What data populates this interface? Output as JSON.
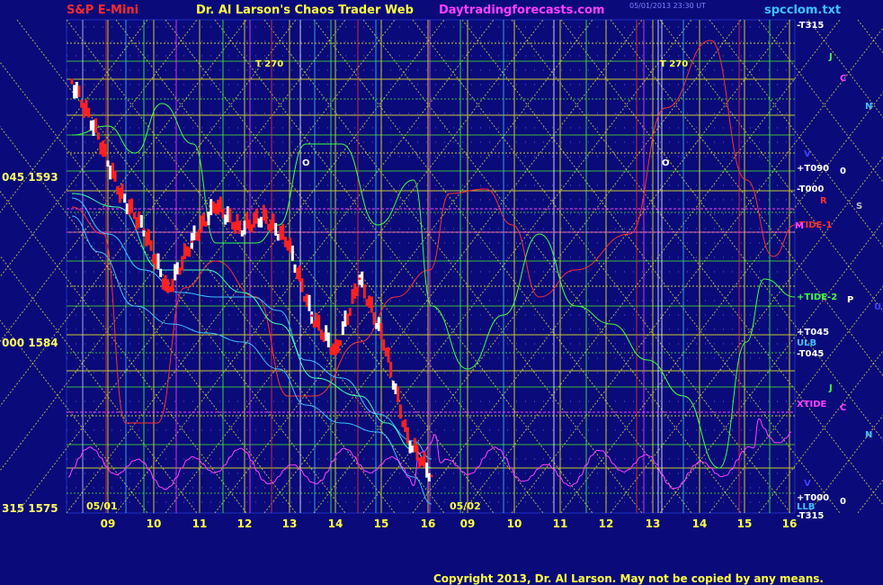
{
  "header": {
    "title": "S&P E-Mini",
    "author": "Dr. Al Larson's Chaos Trader Web",
    "site": "Daytradingforecasts.com",
    "file": "spcclom.txt",
    "date_line": "05/01/2013 23:30 UT"
  },
  "copyright": "Copyright 2013, Dr. Al Larson. May not be copied by any means.",
  "y_labels": [
    {
      "text": "045  1593",
      "value": 1593
    },
    {
      "text": "000  1584",
      "value": 1584
    },
    {
      "text": "315  1575",
      "value": 1575
    }
  ],
  "day_labels": [
    "05/01",
    "05/02"
  ],
  "hour_labels": [
    "09",
    "10",
    "11",
    "12",
    "13",
    "14",
    "15",
    "16",
    "09",
    "10",
    "11",
    "12",
    "13",
    "14",
    "15",
    "16"
  ],
  "right_labels": [
    {
      "text": "-T315",
      "color": "#ffffff"
    },
    {
      "text": "+T090",
      "color": "#ffffff"
    },
    {
      "text": "-T000",
      "color": "#ffffff"
    },
    {
      "text": "-TIDE-1",
      "color": "#ff3030"
    },
    {
      "text": "+TIDE-2",
      "color": "#40ff40"
    },
    {
      "text": "+T045",
      "color": "#ffffff"
    },
    {
      "text": "ULB",
      "color": "#40c0ff"
    },
    {
      "text": "-T045",
      "color": "#ffffff"
    },
    {
      "text": "XTIDE",
      "color": "#ff40ff"
    },
    {
      "text": "+T000",
      "color": "#ffffff"
    },
    {
      "text": "LLB",
      "color": "#40c0ff"
    },
    {
      "text": "-T315",
      "color": "#ffffff"
    }
  ],
  "planet_labels": [
    "J",
    "C",
    "N",
    "0",
    "R",
    "S",
    "P",
    "U",
    "J",
    "C",
    "N",
    "0",
    "M",
    "V",
    "V",
    "O",
    "O",
    "T 270",
    "T 270"
  ],
  "colors": {
    "background": "#0a0a7a",
    "price": "#ff2020",
    "bar_up": "#ffffff",
    "grid_yellow": "#c8c832",
    "grid_green": "#3cb43c",
    "tide1": "#ff3030",
    "tide2": "#40ff40",
    "xtide": "#ff40ff",
    "band": "#40c0ff"
  },
  "chart_data": {
    "type": "line",
    "title": "S&P E-Mini",
    "ylabel": "",
    "xlabel": "",
    "ylim": [
      1575,
      1595
    ],
    "x": [
      "05/01 08:30",
      "05/01 09:00",
      "05/01 09:30",
      "05/01 10:00",
      "05/01 10:30",
      "05/01 11:00",
      "05/01 11:30",
      "05/01 12:00",
      "05/01 12:30",
      "05/01 13:00",
      "05/01 13:30",
      "05/01 14:00",
      "05/01 14:30",
      "05/01 15:00",
      "05/01 15:30",
      "05/01 16:00"
    ],
    "series": [
      {
        "values": [
          1592.5,
          1590.5,
          1588.0,
          1586.5,
          1584.0,
          1586.0,
          1587.5,
          1586.5,
          1587.0,
          1586.0,
          1583.0,
          1581.5,
          1584.5,
          1582.0,
          1578.0,
          1576.5
        ]
      }
    ],
    "grid": true
  }
}
